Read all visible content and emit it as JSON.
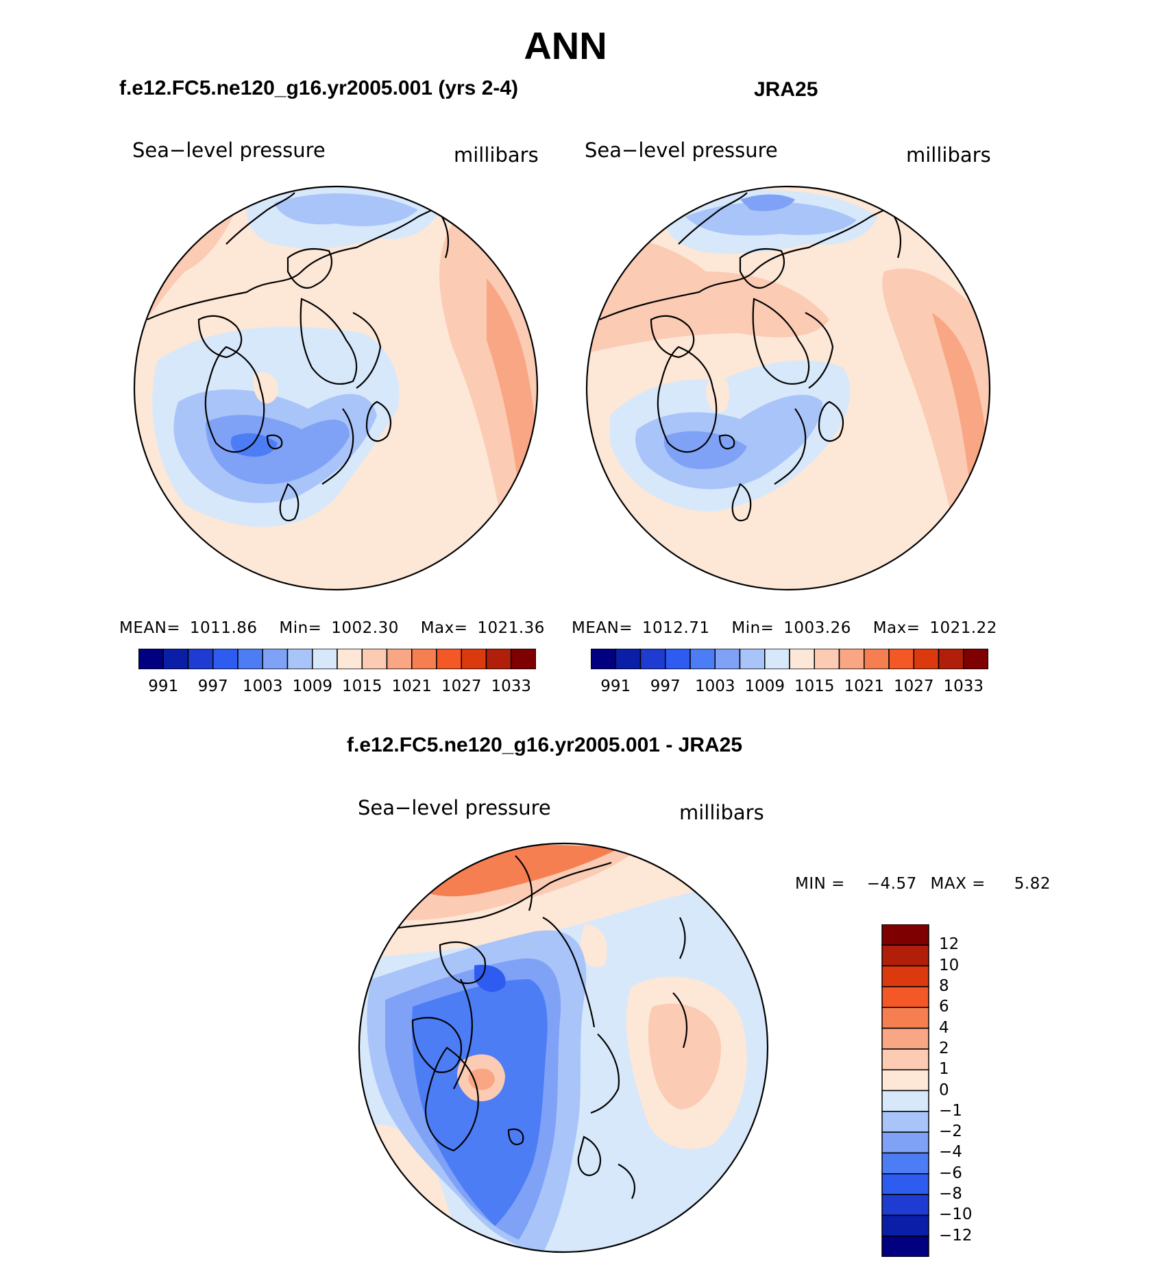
{
  "title": "ANN",
  "colors": {
    "abs_scale": [
      "#000080",
      "#0a1ea8",
      "#1e3cd2",
      "#2f5cf0",
      "#4d7df5",
      "#7fa2f7",
      "#a9c4f9",
      "#d7e8fb",
      "#fde7d7",
      "#fbcbb4",
      "#f8a684",
      "#f67f52",
      "#f45826",
      "#db3a0e",
      "#b11f0a",
      "#7f0000"
    ],
    "diff_scale": [
      "#7f0000",
      "#b11f0a",
      "#db3a0e",
      "#f45826",
      "#f67f52",
      "#f8a684",
      "#fbcbb4",
      "#fde7d7",
      "#d7e8fb",
      "#a9c4f9",
      "#7fa2f7",
      "#4d7df5",
      "#2f5cf0",
      "#1e3cd2",
      "#0a1ea8",
      "#000080"
    ]
  },
  "panels": [
    {
      "id": "model",
      "title": "f.e12.FC5.ne120_g16.yr2005.001 (yrs 2-4)",
      "variable": "Sea−level pressure",
      "units": "millibars",
      "stats": {
        "mean_label": "MEAN=",
        "mean": "1011.86",
        "min_label": "Min=",
        "min": "1002.30",
        "max_label": "Max=",
        "max": "1021.36"
      },
      "colorbar_ticks": [
        "991",
        "997",
        "1003",
        "1009",
        "1015",
        "1021",
        "1027",
        "1033"
      ]
    },
    {
      "id": "obs",
      "title": "JRA25",
      "variable": "Sea−level pressure",
      "units": "millibars",
      "stats": {
        "mean_label": "MEAN=",
        "mean": "1012.71",
        "min_label": "Min=",
        "min": "1003.26",
        "max_label": "Max=",
        "max": "1021.22"
      },
      "colorbar_ticks": [
        "991",
        "997",
        "1003",
        "1009",
        "1015",
        "1021",
        "1027",
        "1033"
      ]
    },
    {
      "id": "diff",
      "title": "f.e12.FC5.ne120_g16.yr2005.001 - JRA25",
      "variable": "Sea−level pressure",
      "units": "millibars",
      "stats": {
        "min_label": "MIN =",
        "min": "−4.57",
        "max_label": "MAX =",
        "max": "5.82"
      },
      "colorbar_ticks": [
        "12",
        "10",
        "8",
        "6",
        "4",
        "2",
        "1",
        "0",
        "−1",
        "−2",
        "−4",
        "−6",
        "−8",
        "−10",
        "−12"
      ]
    }
  ]
}
